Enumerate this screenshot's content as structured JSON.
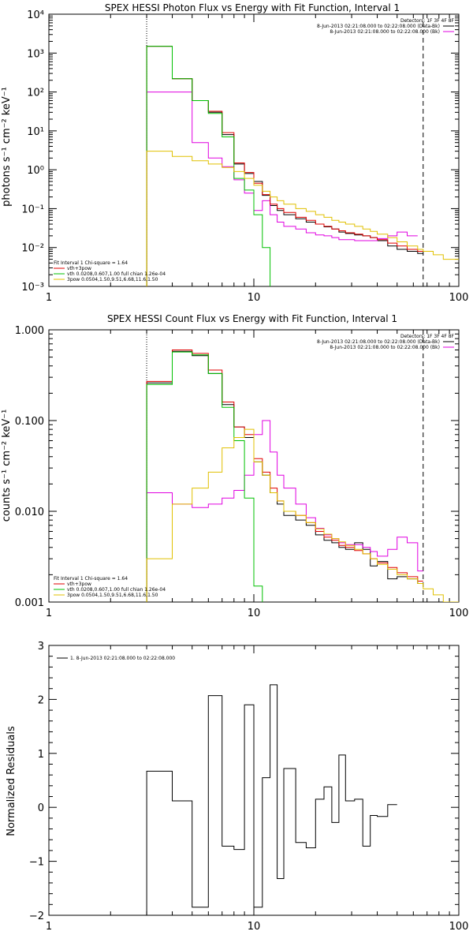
{
  "chart_data": [
    {
      "type": "line",
      "title": "SPEX HESSI Photon Flux vs Energy with Fit Function, Interval 1",
      "ylabel": "photons s⁻¹ cm⁻² keV⁻¹",
      "xlabel": "",
      "x_scale": "log",
      "y_scale": "log",
      "xlim": [
        1,
        100
      ],
      "ylim": [
        0.001,
        10000
      ],
      "x_ticks": [
        {
          "v": 1,
          "label": "1"
        },
        {
          "v": 10,
          "label": "10"
        },
        {
          "v": 100,
          "label": "100"
        }
      ],
      "y_ticks": [
        {
          "v": 0.001,
          "label": "10⁻³"
        },
        {
          "v": 0.01,
          "label": "10⁻²"
        },
        {
          "v": 0.1,
          "label": "10⁻¹"
        },
        {
          "v": 1,
          "label": "10⁰"
        },
        {
          "v": 10,
          "label": "10¹"
        },
        {
          "v": 100,
          "label": "10²"
        },
        {
          "v": 1000,
          "label": "10³"
        },
        {
          "v": 10000,
          "label": "10⁴"
        }
      ],
      "vlines": [
        {
          "x": 3.0,
          "style": "dotted"
        },
        {
          "x": 67.0,
          "style": "dashed"
        }
      ],
      "legend_top_right": [
        {
          "text": "Detectors: 1F 3F 4F 8F",
          "color": ""
        },
        {
          "text": "8-Jun-2013 02:21:08.000 to 02:22:08.000 (Data-Bk)",
          "color": "#000000"
        },
        {
          "text": "8-Jun-2013 02:21:08.000 to 02:22:08.000 (Bk)",
          "color": "#e000e0"
        }
      ],
      "legend_bottom_left": [
        {
          "text": "Fit Interval 1     Chi-square = 1.64",
          "color": ""
        },
        {
          "text": "vth+3pow",
          "color": "#e00000"
        },
        {
          "text": "vth 0.0208,0.607,1.00   full chian 1.26e-04",
          "color": "#00c000"
        },
        {
          "text": "3pow 0.0504,1.50,9.51,6.68,11.6,1.50",
          "color": "#e0c000"
        }
      ],
      "edges": [
        3,
        4,
        5,
        6,
        7,
        8,
        9,
        10,
        11,
        12,
        13,
        14,
        16,
        18,
        20,
        22,
        24,
        26,
        28,
        31,
        34,
        37,
        40,
        45,
        50,
        56,
        63,
        67,
        75,
        84,
        100
      ],
      "series": [
        {
          "name": "",
          "color": "#000000",
          "values": [
            1500,
            220,
            60,
            30,
            8,
            1.4,
            0.8,
            0.5,
            0.22,
            0.12,
            0.09,
            0.07,
            0.055,
            0.045,
            0.04,
            0.034,
            0.03,
            0.025,
            0.023,
            0.021,
            0.02,
            0.018,
            0.015,
            0.011,
            0.009,
            0.008,
            0.007
          ]
        },
        {
          "name": "",
          "color": "#e000e0",
          "values": [
            100,
            100,
            5,
            2,
            1.2,
            0.55,
            0.25,
            0.09,
            0.16,
            0.07,
            0.045,
            0.035,
            0.03,
            0.024,
            0.021,
            0.02,
            0.018,
            0.016,
            0.016,
            0.015,
            0.015,
            0.015,
            0.017,
            0.02,
            0.025,
            0.02
          ]
        },
        {
          "name": "",
          "color": "#e00000",
          "values": [
            1500,
            220,
            60,
            32,
            9,
            1.5,
            0.85,
            0.45,
            0.23,
            0.13,
            0.1,
            0.08,
            0.06,
            0.05,
            0.04,
            0.035,
            0.03,
            0.027,
            0.024,
            0.022,
            0.02,
            0.018,
            0.016,
            0.013,
            0.011,
            0.009,
            0.008
          ]
        },
        {
          "name": "",
          "color": "#00c000",
          "values": [
            1500,
            220,
            60,
            28,
            7,
            0.6,
            0.3,
            0.07,
            0.01,
            0.0008
          ]
        },
        {
          "name": "",
          "color": "#e0c000",
          "values": [
            3,
            2.2,
            1.7,
            1.4,
            1.15,
            0.9,
            0.6,
            0.4,
            0.28,
            0.2,
            0.16,
            0.13,
            0.1,
            0.085,
            0.07,
            0.06,
            0.05,
            0.045,
            0.04,
            0.035,
            0.03,
            0.026,
            0.022,
            0.018,
            0.014,
            0.011,
            0.009,
            0.008,
            0.0065,
            0.005
          ]
        }
      ]
    },
    {
      "type": "line",
      "title": "SPEX HESSI Count Flux vs Energy with Fit Function, Interval 1",
      "ylabel": "counts s⁻¹ cm⁻² keV⁻¹",
      "xlabel": "",
      "x_scale": "log",
      "y_scale": "log",
      "xlim": [
        1,
        100
      ],
      "ylim": [
        0.001,
        1.0
      ],
      "x_ticks": [
        {
          "v": 1,
          "label": "1"
        },
        {
          "v": 10,
          "label": "10"
        },
        {
          "v": 100,
          "label": "100"
        }
      ],
      "y_ticks": [
        {
          "v": 0.001,
          "label": "0.001"
        },
        {
          "v": 0.01,
          "label": "0.010"
        },
        {
          "v": 0.1,
          "label": "0.100"
        },
        {
          "v": 1,
          "label": "1.000"
        }
      ],
      "vlines": [
        {
          "x": 3.0,
          "style": "dotted"
        },
        {
          "x": 67.0,
          "style": "dashed"
        }
      ],
      "legend_top_right": [
        {
          "text": "Detectors: 1F 3F 4F 8F",
          "color": ""
        },
        {
          "text": "8-Jun-2013 02:21:08.000 to 02:22:08.000 (Data-Bk)",
          "color": "#000000"
        },
        {
          "text": "8-Jun-2013 02:21:08.000 to 02:22:08.000 (Bk)",
          "color": "#e000e0"
        }
      ],
      "legend_bottom_left": [
        {
          "text": "Fit Interval 1     Chi-square = 1.64",
          "color": ""
        },
        {
          "text": "vth+3pow",
          "color": "#e00000"
        },
        {
          "text": "vth 0.0208,0.607,1.00   full chian 1.26e-04",
          "color": "#00c000"
        },
        {
          "text": "3pow 0.0504,1.50,9.51,6.68,11.6,1.50",
          "color": "#e0c000"
        }
      ],
      "edges": [
        3,
        4,
        5,
        6,
        7,
        8,
        9,
        10,
        11,
        12,
        13,
        14,
        16,
        18,
        20,
        22,
        24,
        26,
        28,
        31,
        34,
        37,
        40,
        45,
        50,
        56,
        63,
        67,
        75,
        84,
        100
      ],
      "series": [
        {
          "name": "",
          "color": "#000000",
          "values": [
            0.26,
            0.58,
            0.52,
            0.33,
            0.15,
            0.085,
            0.065,
            0.035,
            0.025,
            0.016,
            0.012,
            0.009,
            0.008,
            0.007,
            0.0055,
            0.0048,
            0.0045,
            0.004,
            0.0038,
            0.0045,
            0.0038,
            0.0025,
            0.0028,
            0.0018,
            0.0019,
            0.0018,
            0.0016
          ]
        },
        {
          "name": "",
          "color": "#e000e0",
          "values": [
            0.016,
            0.012,
            0.011,
            0.012,
            0.014,
            0.017,
            0.025,
            0.07,
            0.1,
            0.045,
            0.025,
            0.018,
            0.012,
            0.0085,
            0.0065,
            0.0055,
            0.005,
            0.0045,
            0.0043,
            0.0043,
            0.004,
            0.0036,
            0.0032,
            0.0038,
            0.0052,
            0.0045,
            0.0022
          ]
        },
        {
          "name": "",
          "color": "#e00000",
          "values": [
            0.27,
            0.6,
            0.55,
            0.36,
            0.16,
            0.085,
            0.07,
            0.038,
            0.027,
            0.018,
            0.013,
            0.01,
            0.009,
            0.0075,
            0.006,
            0.0052,
            0.0048,
            0.0042,
            0.004,
            0.0037,
            0.0034,
            0.003,
            0.0027,
            0.0024,
            0.0021,
            0.0019,
            0.0017
          ]
        },
        {
          "name": "",
          "color": "#00c000",
          "values": [
            0.25,
            0.57,
            0.53,
            0.33,
            0.14,
            0.06,
            0.014,
            0.0015,
            0.0008
          ]
        },
        {
          "name": "",
          "color": "#e0c000",
          "values": [
            0.003,
            0.012,
            0.018,
            0.027,
            0.05,
            0.065,
            0.08,
            0.035,
            0.025,
            0.016,
            0.013,
            0.01,
            0.009,
            0.0075,
            0.0064,
            0.0056,
            0.005,
            0.0046,
            0.0042,
            0.0038,
            0.0034,
            0.003,
            0.0026,
            0.0023,
            0.002,
            0.0018,
            0.0016,
            0.0014,
            0.0012,
            0.001
          ]
        }
      ]
    },
    {
      "type": "line",
      "title": "",
      "ylabel": "Normalized Residuals",
      "xlabel": "",
      "x_scale": "log",
      "y_scale": "linear",
      "xlim": [
        1,
        100
      ],
      "ylim": [
        -2,
        3
      ],
      "x_ticks": [
        {
          "v": 1,
          "label": "1"
        },
        {
          "v": 10,
          "label": "10"
        },
        {
          "v": 100,
          "label": "100"
        }
      ],
      "y_ticks": [
        {
          "v": -2,
          "label": "−2"
        },
        {
          "v": -1,
          "label": "−1"
        },
        {
          "v": 0,
          "label": "0"
        },
        {
          "v": 1,
          "label": "1"
        },
        {
          "v": 2,
          "label": "2"
        },
        {
          "v": 3,
          "label": "3"
        }
      ],
      "vlines": [],
      "legend_top_left": [
        {
          "text": "1.  8-Jun-2013 02:21:08.000 to 02:22:08.000",
          "color": "#000000"
        }
      ],
      "edges": [
        3,
        4,
        5,
        6,
        7,
        8,
        9,
        10,
        11,
        12,
        13,
        14,
        16,
        18,
        20,
        22,
        24,
        26,
        28,
        31,
        34,
        37,
        40,
        45,
        50,
        56,
        63,
        67
      ],
      "series": [
        {
          "name": "",
          "color": "#000000",
          "values": [
            0.67,
            0.12,
            -1.85,
            2.07,
            -0.72,
            -0.78,
            1.9,
            -1.85,
            0.55,
            2.27,
            -1.32,
            0.72,
            -0.65,
            -0.75,
            0.15,
            0.38,
            -0.28,
            0.97,
            0.12,
            0.15,
            -0.72,
            -0.15,
            -0.17,
            0.05
          ]
        }
      ]
    }
  ]
}
